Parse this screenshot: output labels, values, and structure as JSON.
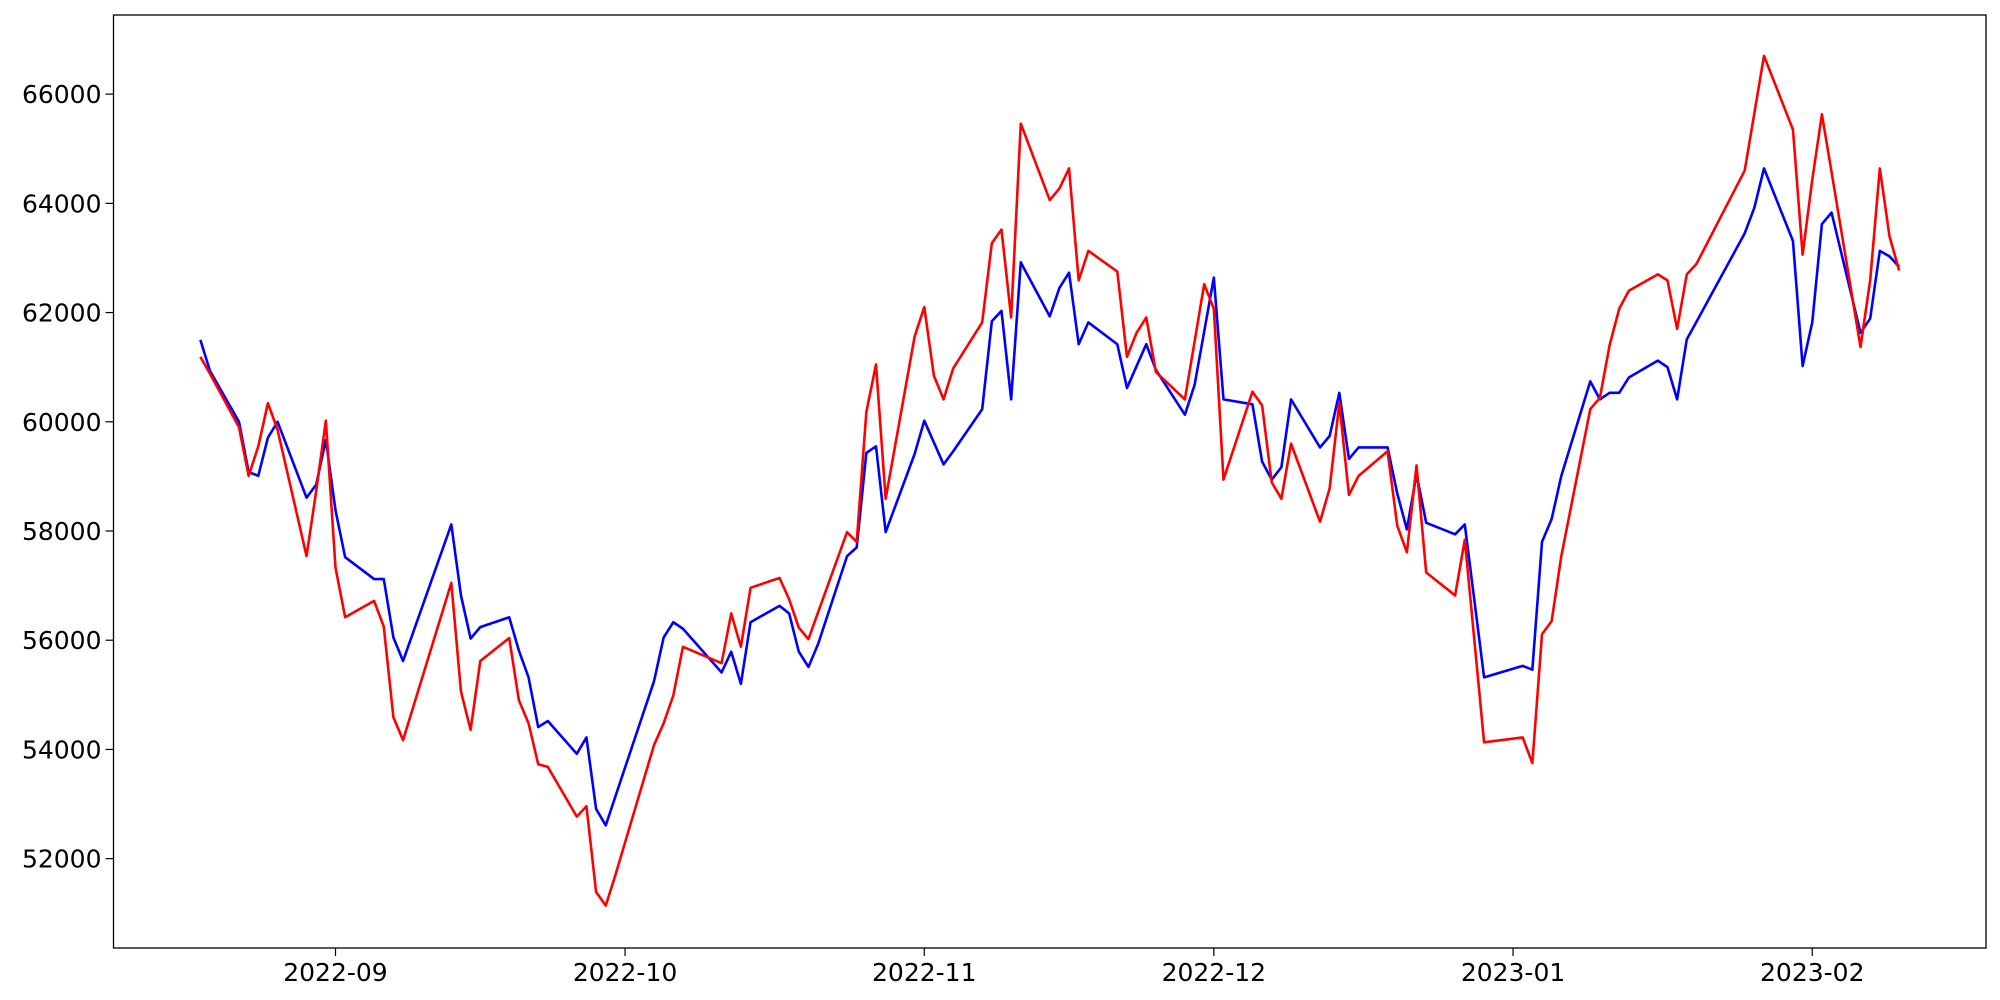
{
  "chart_data": {
    "type": "line",
    "x": [
      "2022-08-18",
      "2022-08-19",
      "2022-08-22",
      "2022-08-23",
      "2022-08-24",
      "2022-08-25",
      "2022-08-26",
      "2022-08-29",
      "2022-08-30",
      "2022-08-31",
      "2022-09-01",
      "2022-09-02",
      "2022-09-05",
      "2022-09-06",
      "2022-09-07",
      "2022-09-08",
      "2022-09-13",
      "2022-09-14",
      "2022-09-15",
      "2022-09-16",
      "2022-09-19",
      "2022-09-20",
      "2022-09-21",
      "2022-09-22",
      "2022-09-23",
      "2022-09-26",
      "2022-09-27",
      "2022-09-28",
      "2022-09-29",
      "2022-09-30",
      "2022-10-04",
      "2022-10-05",
      "2022-10-06",
      "2022-10-07",
      "2022-10-11",
      "2022-10-12",
      "2022-10-13",
      "2022-10-14",
      "2022-10-17",
      "2022-10-18",
      "2022-10-19",
      "2022-10-20",
      "2022-10-21",
      "2022-10-24",
      "2022-10-25",
      "2022-10-26",
      "2022-10-27",
      "2022-10-28",
      "2022-10-31",
      "2022-11-01",
      "2022-11-02",
      "2022-11-03",
      "2022-11-04",
      "2022-11-07",
      "2022-11-08",
      "2022-11-09",
      "2022-11-10",
      "2022-11-11",
      "2022-11-14",
      "2022-11-15",
      "2022-11-16",
      "2022-11-17",
      "2022-11-18",
      "2022-11-21",
      "2022-11-22",
      "2022-11-23",
      "2022-11-24",
      "2022-11-25",
      "2022-11-28",
      "2022-11-29",
      "2022-11-30",
      "2022-12-01",
      "2022-12-02",
      "2022-12-05",
      "2022-12-06",
      "2022-12-07",
      "2022-12-08",
      "2022-12-09",
      "2022-12-12",
      "2022-12-13",
      "2022-12-14",
      "2022-12-15",
      "2022-12-16",
      "2022-12-19",
      "2022-12-20",
      "2022-12-21",
      "2022-12-22",
      "2022-12-23",
      "2022-12-26",
      "2022-12-27",
      "2022-12-29",
      "2023-01-02",
      "2023-01-03",
      "2023-01-04",
      "2023-01-05",
      "2023-01-06",
      "2023-01-09",
      "2023-01-10",
      "2023-01-11",
      "2023-01-12",
      "2023-01-13",
      "2023-01-16",
      "2023-01-17",
      "2023-01-18",
      "2023-01-19",
      "2023-01-20",
      "2023-01-25",
      "2023-01-26",
      "2023-01-27",
      "2023-01-30",
      "2023-01-31",
      "2023-02-01",
      "2023-02-02",
      "2023-02-03",
      "2023-02-06",
      "2023-02-07",
      "2023-02-08",
      "2023-02-09",
      "2023-02-10"
    ],
    "series": [
      {
        "color": "#0000ff",
        "values": [
          61500,
          60930,
          60000,
          59080,
          59010,
          59710,
          60000,
          58610,
          58850,
          59670,
          58380,
          57520,
          57120,
          57120,
          56050,
          55620,
          58120,
          56820,
          56030,
          56240,
          56420,
          55810,
          55320,
          54410,
          54520,
          53920,
          54220,
          52910,
          52610,
          53140,
          55250,
          56050,
          56330,
          56210,
          55410,
          55790,
          55200,
          56330,
          56630,
          56490,
          55790,
          55510,
          55930,
          57540,
          57700,
          59430,
          59550,
          57980,
          59410,
          60020,
          59620,
          59220,
          59460,
          60230,
          61840,
          62030,
          60410,
          62920,
          61930,
          62450,
          62730,
          61420,
          61820,
          61420,
          60620,
          61020,
          61420,
          60950,
          60130,
          60670,
          61650,
          62640,
          60410,
          60320,
          59270,
          58940,
          59170,
          60410,
          59530,
          59740,
          60530,
          59320,
          59530,
          59530,
          58690,
          58030,
          59040,
          58150,
          57940,
          58120,
          55320,
          55530,
          55460,
          57800,
          58220,
          59010,
          60740,
          60410,
          60530,
          60530,
          60810,
          61120,
          61000,
          60410,
          61510,
          61830,
          63450,
          63920,
          64640,
          63310,
          61020,
          61820,
          63620,
          63830,
          61630,
          61890,
          63130,
          63030,
          62840
        ]
      },
      {
        "color": "#ff0000",
        "values": [
          61190,
          60880,
          59900,
          59010,
          59550,
          60340,
          59850,
          57540,
          58730,
          60020,
          57330,
          56420,
          56720,
          56250,
          54590,
          54170,
          57050,
          55060,
          54360,
          55620,
          56040,
          54900,
          54480,
          53730,
          53680,
          52770,
          52960,
          51390,
          51140,
          51700,
          54080,
          54480,
          54990,
          55880,
          55580,
          56490,
          55880,
          56960,
          57140,
          56750,
          56230,
          56020,
          56510,
          57980,
          57800,
          60180,
          61050,
          58590,
          61560,
          62100,
          60840,
          60410,
          60980,
          61820,
          63270,
          63520,
          61910,
          65460,
          64060,
          64270,
          64640,
          62590,
          63130,
          62750,
          61190,
          61630,
          61910,
          60910,
          60410,
          61460,
          62520,
          62070,
          58940,
          60550,
          60300,
          58890,
          58590,
          59600,
          58170,
          58780,
          60340,
          58660,
          59010,
          59460,
          58100,
          57610,
          59200,
          57240,
          56820,
          57840,
          54130,
          54220,
          53750,
          56110,
          56350,
          57540,
          60230,
          60440,
          61400,
          62070,
          62400,
          62700,
          62590,
          61700,
          62700,
          62890,
          64600,
          65650,
          66700,
          65350,
          63060,
          64430,
          65630,
          64570,
          61370,
          62590,
          64640,
          63400,
          62770
        ]
      }
    ],
    "xlim": [
      "2022-08-09",
      "2023-02-19"
    ],
    "xticks": [
      {
        "value": "2022-09-01",
        "label": "2022-09"
      },
      {
        "value": "2022-10-01",
        "label": "2022-10"
      },
      {
        "value": "2022-11-01",
        "label": "2022-11"
      },
      {
        "value": "2022-12-01",
        "label": "2022-12"
      },
      {
        "value": "2023-01-01",
        "label": "2023-01"
      },
      {
        "value": "2023-02-01",
        "label": "2023-02"
      }
    ],
    "ylim": [
      50364,
      67449
    ],
    "yticks": [
      52000,
      54000,
      56000,
      58000,
      60000,
      62000,
      64000,
      66000
    ],
    "grid": false
  }
}
